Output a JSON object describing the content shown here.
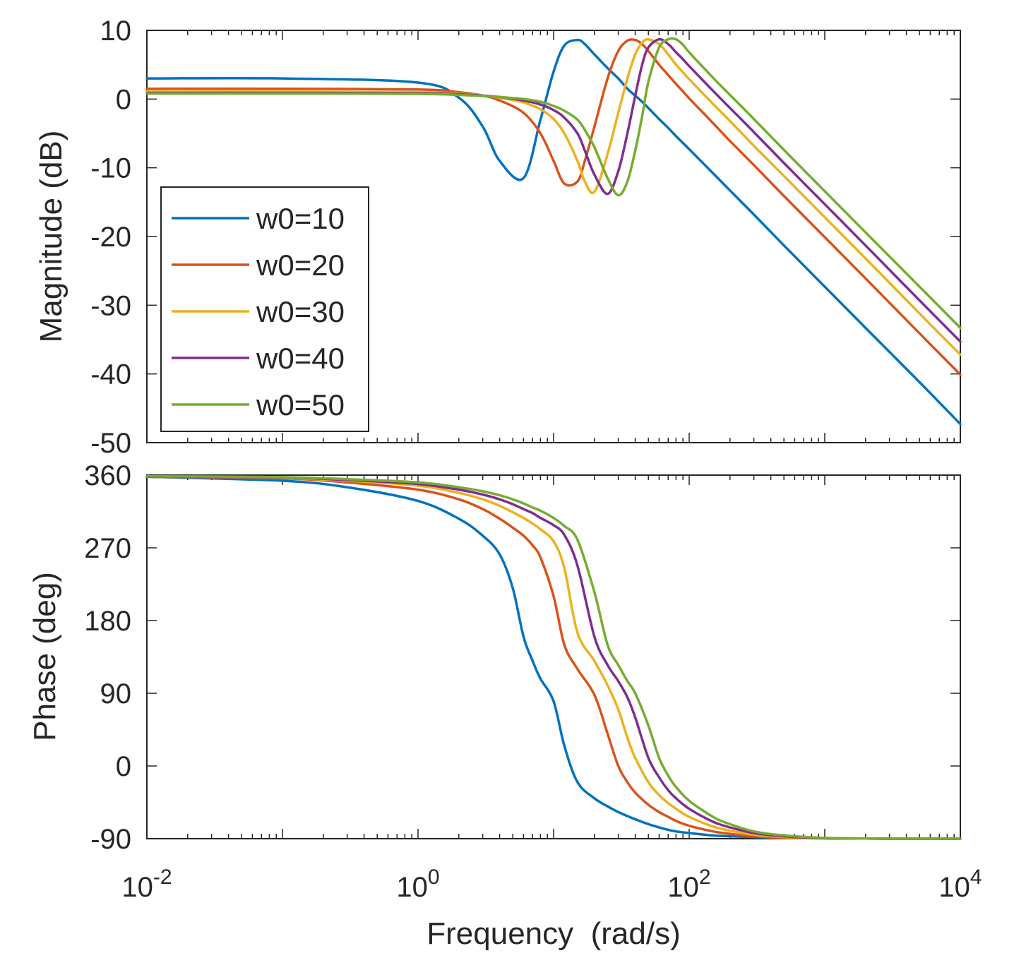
{
  "chart_data": [
    {
      "type": "line",
      "panel": "magnitude",
      "title": "",
      "xlabel": "",
      "ylabel": "Magnitude (dB)",
      "xscale": "log",
      "xlim": [
        0.01,
        10000
      ],
      "ylim": [
        -50,
        10
      ],
      "yticks": [
        10,
        0,
        -10,
        -20,
        -30,
        -40,
        -50
      ],
      "ytick_labels": [
        "10",
        "0",
        "-10",
        "-20",
        "-30",
        "-40",
        "-50"
      ],
      "grid": false,
      "legend": {
        "placement": "middle-left",
        "entries": [
          "w0=10",
          "w0=20",
          "w0=30",
          "w0=40",
          "w0=50"
        ]
      },
      "x": [
        0.01,
        0.1,
        1,
        2,
        3,
        4,
        6,
        8,
        10,
        12,
        15,
        17,
        20,
        25,
        30,
        35,
        40,
        45,
        50,
        60,
        70,
        80,
        90,
        100,
        150,
        200,
        300,
        500,
        1000,
        2000,
        5000,
        10000
      ],
      "series": [
        {
          "name": "w0=10",
          "color": "#0072BD",
          "values": [
            3,
            3,
            2.4,
            0.2,
            -4,
            -9,
            -11.5,
            -3,
            4,
            7.8,
            8.6,
            8,
            6.5,
            4.5,
            3,
            1.5,
            0.5,
            -0.4,
            -1.3,
            -2.9,
            -4.2,
            -5.4,
            -6.4,
            -7.3,
            -10.8,
            -13.3,
            -16.8,
            -21.3,
            -27.3,
            -33.3,
            -41.2,
            -47.3
          ]
        },
        {
          "name": "w0=20",
          "color": "#D95319",
          "values": [
            1.5,
            1.5,
            1.4,
            1.0,
            0.5,
            -0.2,
            -2,
            -5,
            -9,
            -12.3,
            -12,
            -9,
            -4,
            3,
            7,
            8.5,
            8.6,
            8,
            7,
            5,
            3.5,
            2.2,
            1.1,
            0.1,
            -3.5,
            -6.1,
            -9.6,
            -14.1,
            -20.1,
            -26.1,
            -34.1,
            -40.1
          ]
        },
        {
          "name": "w0=30",
          "color": "#EDB120",
          "values": [
            1.1,
            1.1,
            1.0,
            0.8,
            0.5,
            0.2,
            -0.5,
            -1.5,
            -2.9,
            -5,
            -9,
            -12,
            -13.5,
            -8,
            -2,
            3,
            6.5,
            8.2,
            8.7,
            8,
            6.5,
            5,
            3.9,
            2.9,
            -0.7,
            -3.2,
            -6.8,
            -11.2,
            -17.2,
            -23.2,
            -31.2,
            -37.2
          ]
        },
        {
          "name": "w0=40",
          "color": "#7E2F8E",
          "values": [
            0.9,
            0.9,
            0.85,
            0.7,
            0.5,
            0.3,
            -0.2,
            -0.8,
            -1.6,
            -2.7,
            -5,
            -7.5,
            -11,
            -13.8,
            -10.5,
            -5,
            0.5,
            5,
            7.5,
            8.7,
            8,
            6.8,
            5.8,
            4.8,
            1.2,
            -1.3,
            -4.8,
            -9.3,
            -15.3,
            -21.3,
            -29.3,
            -35.3
          ]
        },
        {
          "name": "w0=50",
          "color": "#77AC30",
          "values": [
            0.8,
            0.8,
            0.75,
            0.6,
            0.45,
            0.3,
            0,
            -0.4,
            -1.0,
            -1.7,
            -3,
            -4.5,
            -7,
            -11.5,
            -14,
            -12,
            -7.5,
            -2.5,
            2.5,
            7.5,
            8.7,
            8.7,
            7.9,
            6.8,
            3.1,
            0.6,
            -2.9,
            -7.4,
            -13.4,
            -19.4,
            -27.3,
            -33.3
          ]
        }
      ]
    },
    {
      "type": "line",
      "panel": "phase",
      "title": "",
      "xlabel": "Frequency  (rad/s)",
      "ylabel": "Phase (deg)",
      "xscale": "log",
      "xlim": [
        0.01,
        10000
      ],
      "ylim": [
        -90,
        360
      ],
      "xticks": [
        0.01,
        1,
        100,
        10000
      ],
      "xtick_base": [
        "10",
        "10",
        "10",
        "10"
      ],
      "xtick_exp": [
        "-2",
        "0",
        "2",
        "4"
      ],
      "yticks": [
        360,
        270,
        180,
        90,
        0,
        -90
      ],
      "ytick_labels": [
        "360",
        "270",
        "180",
        "90",
        "0",
        "-90"
      ],
      "grid": false,
      "x": [
        0.01,
        0.1,
        0.3,
        1,
        2,
        3,
        4,
        5,
        6,
        7,
        8,
        10,
        12,
        15,
        20,
        25,
        30,
        35,
        40,
        50,
        60,
        70,
        80,
        100,
        150,
        200,
        300,
        500,
        1000,
        2000,
        5000,
        10000
      ],
      "series": [
        {
          "name": "w0=10",
          "color": "#0072BD",
          "values": [
            358,
            353,
            345,
            328,
            306,
            285,
            262,
            220,
            160,
            130,
            108,
            80,
            25,
            -20,
            -40,
            -50,
            -57,
            -62,
            -66,
            -72,
            -76,
            -79,
            -81,
            -83,
            -86,
            -87,
            -88,
            -89,
            -89.5,
            -89.8,
            -90,
            -90
          ]
        },
        {
          "name": "w0=20",
          "color": "#D95319",
          "values": [
            358,
            356,
            351,
            342,
            330,
            318,
            306,
            295,
            285,
            273,
            258,
            210,
            150,
            120,
            88,
            40,
            0,
            -20,
            -33,
            -48,
            -57,
            -63,
            -68,
            -74,
            -81,
            -84,
            -87,
            -89,
            -89.5,
            -89.8,
            -90,
            -90
          ]
        },
        {
          "name": "w0=30",
          "color": "#EDB120",
          "values": [
            358,
            356.5,
            353,
            347,
            338,
            330,
            322,
            314,
            307,
            300,
            293,
            278,
            245,
            165,
            130,
            100,
            70,
            35,
            10,
            -20,
            -36,
            -46,
            -53,
            -63,
            -75,
            -80,
            -85,
            -88,
            -89.5,
            -89.8,
            -90,
            -90
          ]
        },
        {
          "name": "w0=40",
          "color": "#7E2F8E",
          "values": [
            358,
            357,
            354,
            349,
            342,
            336,
            330,
            324,
            318,
            313,
            307,
            298,
            286,
            248,
            160,
            125,
            105,
            85,
            60,
            10,
            -14,
            -30,
            -40,
            -53,
            -69,
            -76,
            -83,
            -87,
            -89.5,
            -89.8,
            -90,
            -90
          ]
        },
        {
          "name": "w0=50",
          "color": "#77AC30",
          "values": [
            358.5,
            357.5,
            355,
            351,
            345,
            340,
            335,
            330,
            325,
            320,
            316,
            307,
            297,
            280,
            215,
            150,
            125,
            105,
            90,
            50,
            10,
            -12,
            -26,
            -43,
            -63,
            -72,
            -81,
            -86,
            -89,
            -89.8,
            -90,
            -90
          ]
        }
      ]
    }
  ]
}
